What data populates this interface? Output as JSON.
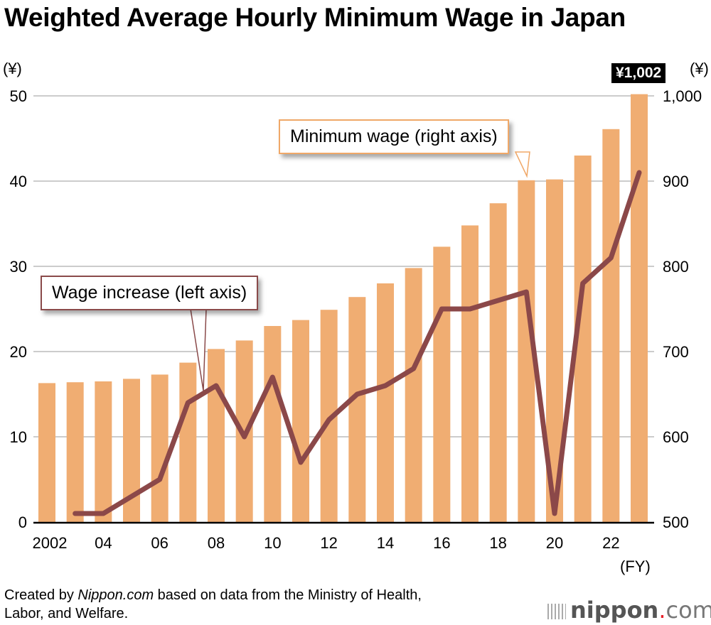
{
  "title": "Weighted Average Hourly Minimum Wage in Japan",
  "left_unit": "(¥)",
  "right_unit": "(¥)",
  "x_unit": "(FY)",
  "latest_badge": "¥1,002",
  "callouts": {
    "line": "Wage increase (left axis)",
    "bar": "Minimum wage (right axis)"
  },
  "source": {
    "prefix": "Created by ",
    "brand": "Nippon.com",
    "suffix_line1": " based on data from the Ministry of Health,",
    "line2": "Labor, and Welfare."
  },
  "logo": {
    "name": "nippon",
    "dot": ".",
    "tld": "com"
  },
  "colors": {
    "bar": "#f0ad72",
    "line": "#8b4849",
    "grid": "#cccccc"
  },
  "chart_data": {
    "type": "bar+line",
    "title": "Weighted Average Hourly Minimum Wage in Japan",
    "xlabel": "(FY)",
    "x": [
      2002,
      2003,
      2004,
      2005,
      2006,
      2007,
      2008,
      2009,
      2010,
      2011,
      2012,
      2013,
      2014,
      2015,
      2016,
      2017,
      2018,
      2019,
      2020,
      2021,
      2022,
      2023
    ],
    "x_tick_labels": [
      "2002",
      "04",
      "06",
      "08",
      "10",
      "12",
      "14",
      "16",
      "18",
      "20",
      "22"
    ],
    "left_axis": {
      "label": "(¥)",
      "ylim": [
        0,
        50
      ],
      "ticks": [
        0,
        10,
        20,
        30,
        40,
        50
      ]
    },
    "right_axis": {
      "label": "(¥)",
      "ylim": [
        500,
        1000
      ],
      "ticks": [
        "500",
        "600",
        "700",
        "800",
        "900",
        "1,000"
      ],
      "tick_values": [
        500,
        600,
        700,
        800,
        900,
        1000
      ]
    },
    "grid": true,
    "series": [
      {
        "name": "Minimum wage (right axis)",
        "type": "bar",
        "axis": "right",
        "values": [
          663,
          664,
          665,
          668,
          673,
          687,
          703,
          713,
          730,
          737,
          749,
          764,
          780,
          798,
          823,
          848,
          874,
          901,
          902,
          930,
          961,
          1002
        ]
      },
      {
        "name": "Wage increase (left axis)",
        "type": "line",
        "axis": "left",
        "values": [
          null,
          1,
          1,
          3,
          5,
          14,
          16,
          10,
          17,
          7,
          12,
          15,
          16,
          18,
          25,
          25,
          26,
          27,
          1,
          28,
          31,
          41
        ]
      }
    ]
  }
}
